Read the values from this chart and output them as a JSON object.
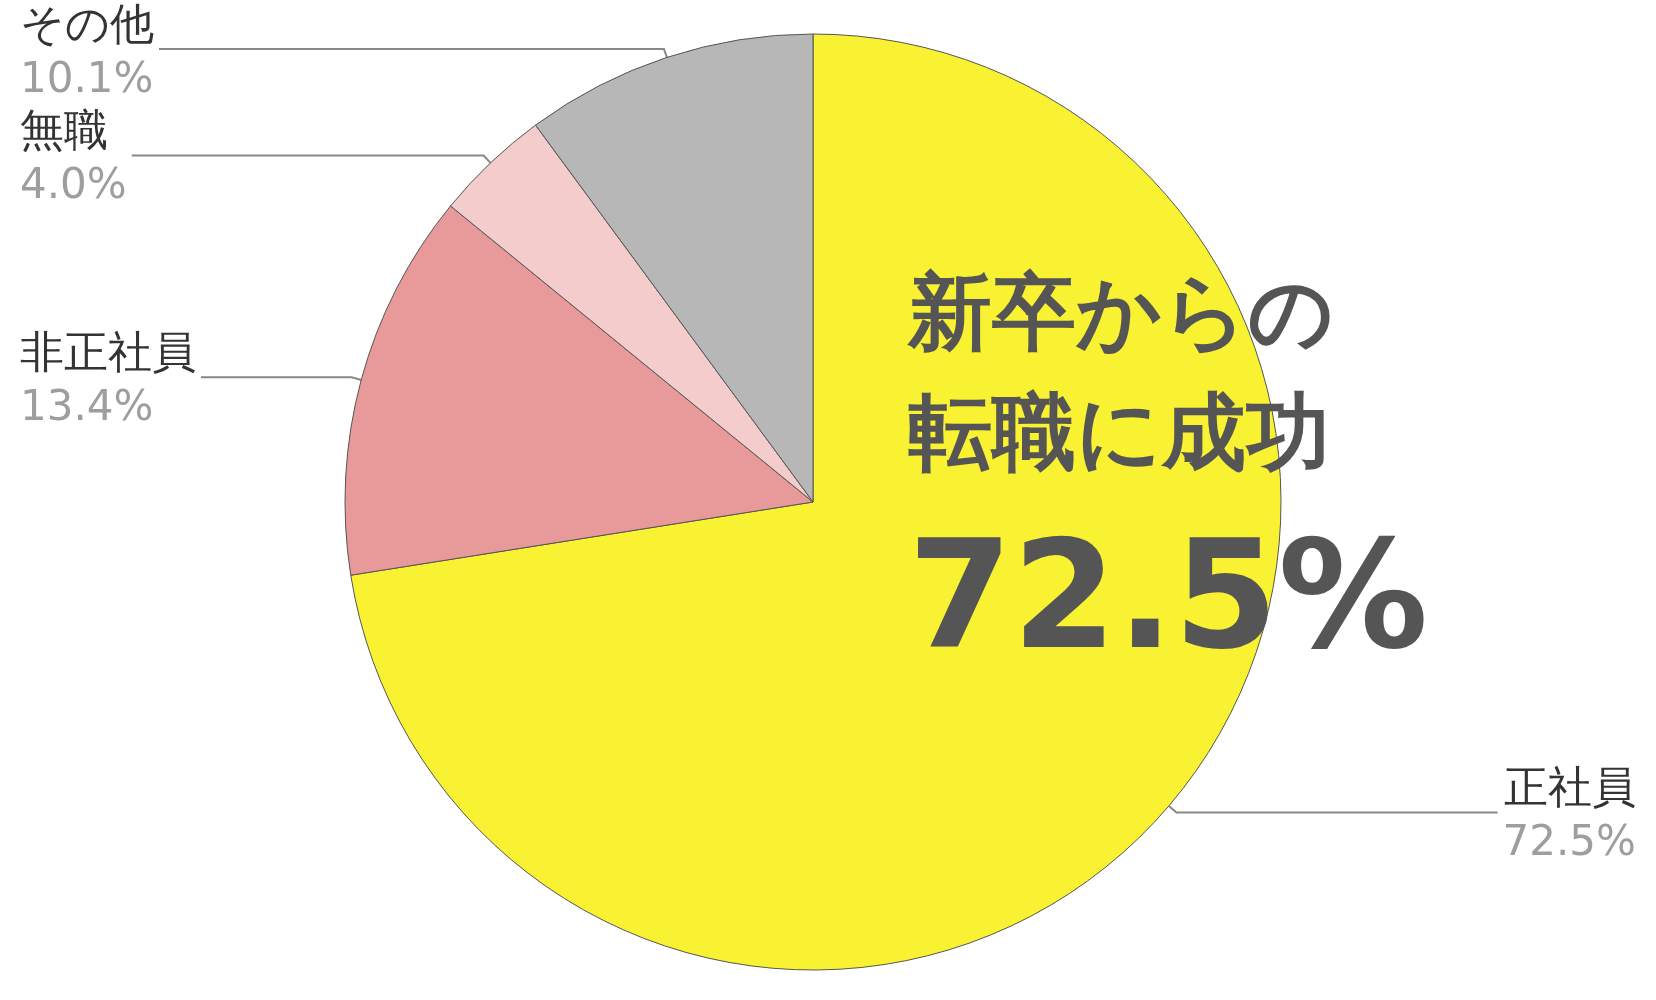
{
  "chart_data": {
    "type": "pie",
    "categories": [
      "正社員",
      "非正社員",
      "無職",
      "その他"
    ],
    "values": [
      72.5,
      13.4,
      4.0,
      10.1
    ],
    "value_labels": [
      "72.5%",
      "13.4%",
      "4.0%",
      "10.1%"
    ],
    "colors": [
      "#f9f232",
      "#e89a9a",
      "#f4cccc",
      "#b7b7b7"
    ],
    "annotations": [
      "新卒からの",
      "転職に成功",
      "72.5%"
    ],
    "legend": false
  }
}
